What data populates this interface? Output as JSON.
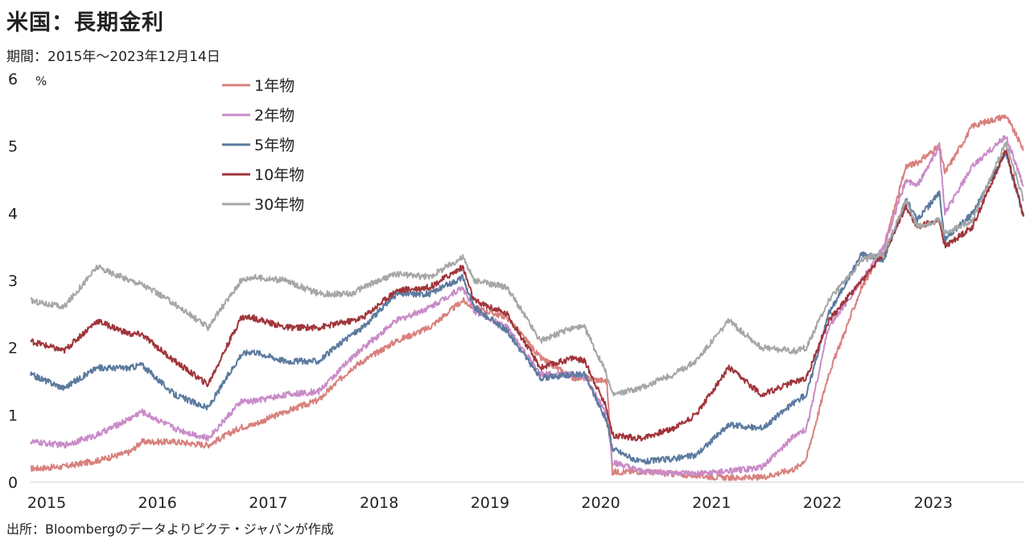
{
  "title": "米国：長期金利",
  "subtitle": "期間：2015年～2023年12月14日",
  "source": "出所：Bloombergのデータよりピクテ・ジャパンが作成",
  "chart_data": {
    "type": "line",
    "unit": "%",
    "ylim": [
      0,
      6
    ],
    "yticks": [
      "0",
      "1",
      "2",
      "3",
      "4",
      "5",
      "6"
    ],
    "xlim": [
      2015,
      2023.96
    ],
    "xticks": [
      "2015",
      "2016",
      "2017",
      "2018",
      "2019",
      "2020",
      "2021",
      "2022",
      "2023"
    ],
    "legend_position": "top-left",
    "series": [
      {
        "name": "1年物",
        "color": "#d8817e",
        "points": [
          [
            2015.0,
            0.2
          ],
          [
            2015.3,
            0.23
          ],
          [
            2015.6,
            0.32
          ],
          [
            2015.9,
            0.45
          ],
          [
            2016.0,
            0.6
          ],
          [
            2016.3,
            0.6
          ],
          [
            2016.6,
            0.55
          ],
          [
            2016.9,
            0.82
          ],
          [
            2017.0,
            0.85
          ],
          [
            2017.3,
            1.05
          ],
          [
            2017.6,
            1.22
          ],
          [
            2017.9,
            1.7
          ],
          [
            2018.0,
            1.8
          ],
          [
            2018.3,
            2.1
          ],
          [
            2018.6,
            2.3
          ],
          [
            2018.9,
            2.7
          ],
          [
            2019.0,
            2.6
          ],
          [
            2019.3,
            2.45
          ],
          [
            2019.6,
            1.85
          ],
          [
            2019.9,
            1.55
          ],
          [
            2020.0,
            1.55
          ],
          [
            2020.2,
            1.5
          ],
          [
            2020.25,
            0.15
          ],
          [
            2020.5,
            0.16
          ],
          [
            2020.8,
            0.12
          ],
          [
            2021.0,
            0.1
          ],
          [
            2021.3,
            0.06
          ],
          [
            2021.6,
            0.07
          ],
          [
            2021.9,
            0.2
          ],
          [
            2022.0,
            0.35
          ],
          [
            2022.2,
            1.6
          ],
          [
            2022.5,
            2.9
          ],
          [
            2022.7,
            3.5
          ],
          [
            2022.9,
            4.7
          ],
          [
            2023.0,
            4.75
          ],
          [
            2023.2,
            5.0
          ],
          [
            2023.25,
            4.6
          ],
          [
            2023.5,
            5.3
          ],
          [
            2023.8,
            5.45
          ],
          [
            2023.96,
            4.95
          ]
        ]
      },
      {
        "name": "2年物",
        "color": "#c98bc8",
        "points": [
          [
            2015.0,
            0.6
          ],
          [
            2015.3,
            0.55
          ],
          [
            2015.6,
            0.7
          ],
          [
            2015.9,
            0.95
          ],
          [
            2016.0,
            1.05
          ],
          [
            2016.3,
            0.8
          ],
          [
            2016.6,
            0.65
          ],
          [
            2016.9,
            1.2
          ],
          [
            2017.0,
            1.2
          ],
          [
            2017.3,
            1.3
          ],
          [
            2017.6,
            1.35
          ],
          [
            2017.9,
            1.85
          ],
          [
            2018.0,
            2.0
          ],
          [
            2018.3,
            2.4
          ],
          [
            2018.6,
            2.6
          ],
          [
            2018.9,
            2.9
          ],
          [
            2019.0,
            2.55
          ],
          [
            2019.3,
            2.3
          ],
          [
            2019.6,
            1.6
          ],
          [
            2019.9,
            1.6
          ],
          [
            2020.0,
            1.58
          ],
          [
            2020.2,
            1.0
          ],
          [
            2020.25,
            0.3
          ],
          [
            2020.5,
            0.16
          ],
          [
            2020.8,
            0.14
          ],
          [
            2021.0,
            0.12
          ],
          [
            2021.3,
            0.16
          ],
          [
            2021.6,
            0.22
          ],
          [
            2021.9,
            0.7
          ],
          [
            2022.0,
            0.78
          ],
          [
            2022.2,
            2.3
          ],
          [
            2022.5,
            3.0
          ],
          [
            2022.7,
            3.5
          ],
          [
            2022.9,
            4.5
          ],
          [
            2023.0,
            4.4
          ],
          [
            2023.2,
            5.0
          ],
          [
            2023.25,
            4.0
          ],
          [
            2023.5,
            4.7
          ],
          [
            2023.8,
            5.15
          ],
          [
            2023.96,
            4.4
          ]
        ]
      },
      {
        "name": "5年物",
        "color": "#5b7a9e",
        "points": [
          [
            2015.0,
            1.6
          ],
          [
            2015.3,
            1.4
          ],
          [
            2015.6,
            1.7
          ],
          [
            2015.9,
            1.7
          ],
          [
            2016.0,
            1.75
          ],
          [
            2016.3,
            1.3
          ],
          [
            2016.6,
            1.1
          ],
          [
            2016.9,
            1.9
          ],
          [
            2017.0,
            1.95
          ],
          [
            2017.3,
            1.8
          ],
          [
            2017.6,
            1.8
          ],
          [
            2017.9,
            2.2
          ],
          [
            2018.0,
            2.3
          ],
          [
            2018.3,
            2.8
          ],
          [
            2018.6,
            2.8
          ],
          [
            2018.9,
            3.05
          ],
          [
            2019.0,
            2.6
          ],
          [
            2019.3,
            2.25
          ],
          [
            2019.6,
            1.55
          ],
          [
            2019.9,
            1.6
          ],
          [
            2020.0,
            1.6
          ],
          [
            2020.2,
            0.9
          ],
          [
            2020.25,
            0.5
          ],
          [
            2020.5,
            0.3
          ],
          [
            2020.8,
            0.35
          ],
          [
            2021.0,
            0.4
          ],
          [
            2021.3,
            0.85
          ],
          [
            2021.6,
            0.8
          ],
          [
            2021.9,
            1.2
          ],
          [
            2022.0,
            1.3
          ],
          [
            2022.2,
            2.5
          ],
          [
            2022.5,
            3.4
          ],
          [
            2022.7,
            3.3
          ],
          [
            2022.9,
            4.2
          ],
          [
            2023.0,
            3.9
          ],
          [
            2023.2,
            4.3
          ],
          [
            2023.25,
            3.6
          ],
          [
            2023.5,
            4.0
          ],
          [
            2023.8,
            4.9
          ],
          [
            2023.96,
            3.95
          ]
        ]
      },
      {
        "name": "10年物",
        "color": "#a0353b",
        "points": [
          [
            2015.0,
            2.1
          ],
          [
            2015.3,
            1.95
          ],
          [
            2015.6,
            2.4
          ],
          [
            2015.9,
            2.2
          ],
          [
            2016.0,
            2.2
          ],
          [
            2016.3,
            1.8
          ],
          [
            2016.6,
            1.45
          ],
          [
            2016.9,
            2.45
          ],
          [
            2017.0,
            2.45
          ],
          [
            2017.3,
            2.3
          ],
          [
            2017.6,
            2.3
          ],
          [
            2017.9,
            2.4
          ],
          [
            2018.0,
            2.45
          ],
          [
            2018.3,
            2.85
          ],
          [
            2018.6,
            2.9
          ],
          [
            2018.9,
            3.2
          ],
          [
            2019.0,
            2.7
          ],
          [
            2019.3,
            2.5
          ],
          [
            2019.6,
            1.7
          ],
          [
            2019.9,
            1.85
          ],
          [
            2020.0,
            1.8
          ],
          [
            2020.2,
            1.1
          ],
          [
            2020.25,
            0.7
          ],
          [
            2020.5,
            0.65
          ],
          [
            2020.8,
            0.8
          ],
          [
            2021.0,
            1.0
          ],
          [
            2021.3,
            1.7
          ],
          [
            2021.6,
            1.3
          ],
          [
            2021.9,
            1.5
          ],
          [
            2022.0,
            1.55
          ],
          [
            2022.2,
            2.4
          ],
          [
            2022.5,
            3.0
          ],
          [
            2022.7,
            3.4
          ],
          [
            2022.9,
            4.1
          ],
          [
            2023.0,
            3.8
          ],
          [
            2023.2,
            3.9
          ],
          [
            2023.25,
            3.5
          ],
          [
            2023.5,
            3.8
          ],
          [
            2023.8,
            4.95
          ],
          [
            2023.96,
            3.95
          ]
        ]
      },
      {
        "name": "30年物",
        "color": "#a6a6a6",
        "points": [
          [
            2015.0,
            2.7
          ],
          [
            2015.3,
            2.6
          ],
          [
            2015.6,
            3.2
          ],
          [
            2015.9,
            3.0
          ],
          [
            2016.0,
            2.95
          ],
          [
            2016.3,
            2.65
          ],
          [
            2016.6,
            2.3
          ],
          [
            2016.9,
            3.0
          ],
          [
            2017.0,
            3.05
          ],
          [
            2017.3,
            3.0
          ],
          [
            2017.6,
            2.8
          ],
          [
            2017.9,
            2.8
          ],
          [
            2018.0,
            2.9
          ],
          [
            2018.3,
            3.1
          ],
          [
            2018.6,
            3.05
          ],
          [
            2018.9,
            3.35
          ],
          [
            2019.0,
            3.0
          ],
          [
            2019.3,
            2.9
          ],
          [
            2019.6,
            2.1
          ],
          [
            2019.9,
            2.3
          ],
          [
            2020.0,
            2.3
          ],
          [
            2020.2,
            1.6
          ],
          [
            2020.25,
            1.3
          ],
          [
            2020.5,
            1.4
          ],
          [
            2020.8,
            1.6
          ],
          [
            2021.0,
            1.8
          ],
          [
            2021.3,
            2.4
          ],
          [
            2021.6,
            2.0
          ],
          [
            2021.9,
            1.95
          ],
          [
            2022.0,
            2.0
          ],
          [
            2022.2,
            2.7
          ],
          [
            2022.5,
            3.3
          ],
          [
            2022.7,
            3.4
          ],
          [
            2022.9,
            4.2
          ],
          [
            2023.0,
            3.8
          ],
          [
            2023.2,
            3.9
          ],
          [
            2023.25,
            3.7
          ],
          [
            2023.5,
            3.9
          ],
          [
            2023.8,
            5.05
          ],
          [
            2023.96,
            4.2
          ]
        ]
      }
    ]
  }
}
